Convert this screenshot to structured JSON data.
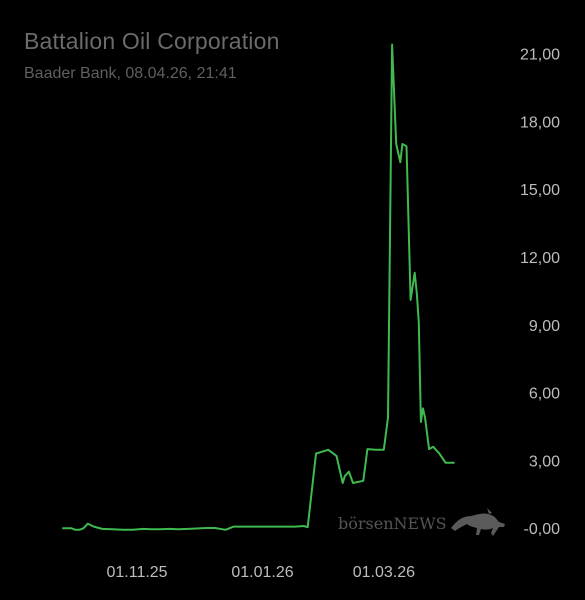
{
  "header": {
    "title": "Battalion Oil Corporation",
    "subtitle": "Baader Bank, 08.04.26, 21:41"
  },
  "watermark": {
    "brand_prefix": "börsen",
    "brand_suffix": "NEWS",
    "logo_icon": "bull-icon"
  },
  "colors": {
    "line": "#3fb950",
    "background": "#000000",
    "text": "#bdbdbd"
  },
  "chart_data": {
    "type": "line",
    "title": "Battalion Oil Corporation",
    "subtitle": "Baader Bank, 08.04.26, 21:41",
    "x_type": "date",
    "xlim": [
      "2025-09-26",
      "2026-04-08"
    ],
    "ylim": [
      -0.3,
      21.6
    ],
    "y_ticks": [
      -0.0,
      3.0,
      6.0,
      9.0,
      12.0,
      15.0,
      18.0,
      21.0
    ],
    "y_tick_labels": [
      "-0,00",
      "3,00",
      "6,00",
      "9,00",
      "12,00",
      "15,00",
      "18,00",
      "21,00"
    ],
    "x_ticks": [
      "2025-11-01",
      "2026-01-01",
      "2026-03-01"
    ],
    "x_tick_labels": [
      "01.11.25",
      "01.01.26",
      "01.03.26"
    ],
    "grid": false,
    "axis_position": "right",
    "series": [
      {
        "x": [
          "2025-09-26",
          "2025-09-30",
          "2025-10-02",
          "2025-10-04",
          "2025-10-06",
          "2025-10-08",
          "2025-10-11",
          "2025-10-15",
          "2025-10-20",
          "2025-10-25",
          "2025-10-30",
          "2025-11-04",
          "2025-11-08",
          "2025-11-12",
          "2025-11-17",
          "2025-11-21",
          "2025-11-26",
          "2025-12-01",
          "2025-12-05",
          "2025-12-09",
          "2025-12-14",
          "2025-12-18",
          "2025-12-23",
          "2025-12-28",
          "2026-01-02",
          "2026-01-07",
          "2026-01-12",
          "2026-01-17",
          "2026-01-21",
          "2026-01-23",
          "2026-01-25",
          "2026-01-27",
          "2026-02-02",
          "2026-02-06",
          "2026-02-09",
          "2026-02-10",
          "2026-02-12",
          "2026-02-14",
          "2026-02-19",
          "2026-02-21",
          "2026-02-25",
          "2026-03-01",
          "2026-03-03",
          "2026-03-05",
          "2026-03-07",
          "2026-03-09",
          "2026-03-10",
          "2026-03-12",
          "2026-03-14",
          "2026-03-16",
          "2026-03-17",
          "2026-03-18",
          "2026-03-19",
          "2026-03-20",
          "2026-03-21",
          "2026-03-23",
          "2026-03-25",
          "2026-03-28",
          "2026-03-31",
          "2026-04-04"
        ],
        "values": [
          0.0,
          0.0,
          -0.07,
          -0.07,
          0.0,
          0.2,
          0.07,
          -0.03,
          -0.05,
          -0.07,
          -0.07,
          -0.03,
          -0.05,
          -0.05,
          -0.03,
          -0.05,
          -0.03,
          -0.01,
          0.01,
          0.01,
          -0.07,
          0.07,
          0.07,
          0.07,
          0.07,
          0.07,
          0.07,
          0.07,
          0.1,
          0.05,
          1.7,
          3.3,
          3.47,
          3.2,
          2.0,
          2.3,
          2.5,
          2.0,
          2.1,
          3.5,
          3.47,
          3.47,
          4.9,
          21.4,
          17.0,
          16.2,
          17.0,
          16.9,
          10.1,
          11.3,
          10.4,
          9.1,
          4.7,
          5.3,
          4.9,
          3.5,
          3.6,
          3.3,
          2.9,
          2.9
        ]
      }
    ]
  }
}
